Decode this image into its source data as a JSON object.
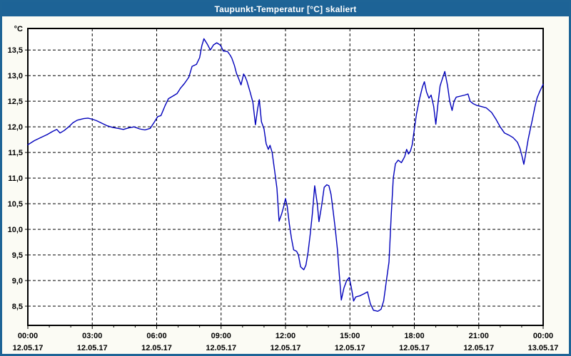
{
  "window": {
    "title": "Taupunkt-Temperatur [°C] skaliert",
    "title_bar_color": "#1d6396",
    "border_color": "#1e6496",
    "background_color": "#fbfbf4",
    "plot_background_color": "#ffffff"
  },
  "chart_data": {
    "type": "line",
    "title": "Taupunkt-Temperatur [°C] skaliert",
    "y_unit_label": "°C",
    "grid": "dashed",
    "legend": "none",
    "ylim": [
      8.125,
      13.92
    ],
    "xlim_hours": [
      0,
      24
    ],
    "x_minor_step_hours": 1,
    "y_ticks": [
      {
        "value": 13.5,
        "label": "13,5"
      },
      {
        "value": 13.0,
        "label": "13,0"
      },
      {
        "value": 12.5,
        "label": "12,5"
      },
      {
        "value": 12.0,
        "label": "12,0"
      },
      {
        "value": 11.5,
        "label": "11,5"
      },
      {
        "value": 11.0,
        "label": "11,0"
      },
      {
        "value": 10.5,
        "label": "10,5"
      },
      {
        "value": 10.0,
        "label": "10,0"
      },
      {
        "value": 9.5,
        "label": "9,5"
      },
      {
        "value": 9.0,
        "label": "9,0"
      },
      {
        "value": 8.5,
        "label": "8,5"
      }
    ],
    "x_ticks": [
      {
        "hour": 0,
        "time": "00:00",
        "date": "12.05.17"
      },
      {
        "hour": 3,
        "time": "03:00",
        "date": "12.05.17"
      },
      {
        "hour": 6,
        "time": "06:00",
        "date": "12.05.17"
      },
      {
        "hour": 9,
        "time": "09:00",
        "date": "12.05.17"
      },
      {
        "hour": 12,
        "time": "12:00",
        "date": "12.05.17"
      },
      {
        "hour": 15,
        "time": "15:00",
        "date": "12.05.17"
      },
      {
        "hour": 18,
        "time": "18:00",
        "date": "12.05.17"
      },
      {
        "hour": 21,
        "time": "21:00",
        "date": "12.05.17"
      },
      {
        "hour": 24,
        "time": "00:00",
        "date": "13.05.17"
      }
    ],
    "series": [
      {
        "name": "Taupunkt-Temperatur",
        "color": "#0000bb",
        "points": [
          [
            0,
            11.65
          ],
          [
            0.3,
            11.73
          ],
          [
            0.6,
            11.79
          ],
          [
            0.9,
            11.85
          ],
          [
            1.15,
            11.91
          ],
          [
            1.35,
            11.95
          ],
          [
            1.5,
            11.88
          ],
          [
            1.7,
            11.93
          ],
          [
            1.9,
            12.0
          ],
          [
            2.1,
            12.08
          ],
          [
            2.3,
            12.13
          ],
          [
            2.6,
            12.16
          ],
          [
            2.8,
            12.17
          ],
          [
            3.0,
            12.15
          ],
          [
            3.2,
            12.12
          ],
          [
            3.45,
            12.07
          ],
          [
            3.7,
            12.02
          ],
          [
            3.95,
            11.99
          ],
          [
            4.2,
            11.97
          ],
          [
            4.45,
            11.95
          ],
          [
            4.7,
            11.98
          ],
          [
            4.95,
            12.0
          ],
          [
            5.2,
            11.96
          ],
          [
            5.45,
            11.94
          ],
          [
            5.7,
            11.97
          ],
          [
            5.9,
            12.1
          ],
          [
            6.05,
            12.2
          ],
          [
            6.2,
            12.22
          ],
          [
            6.4,
            12.42
          ],
          [
            6.55,
            12.55
          ],
          [
            6.75,
            12.6
          ],
          [
            6.95,
            12.65
          ],
          [
            7.1,
            12.75
          ],
          [
            7.3,
            12.85
          ],
          [
            7.5,
            12.97
          ],
          [
            7.65,
            13.18
          ],
          [
            7.85,
            13.22
          ],
          [
            8.0,
            13.35
          ],
          [
            8.1,
            13.58
          ],
          [
            8.2,
            13.72
          ],
          [
            8.35,
            13.62
          ],
          [
            8.5,
            13.5
          ],
          [
            8.65,
            13.6
          ],
          [
            8.8,
            13.64
          ],
          [
            8.95,
            13.6
          ],
          [
            9.0,
            13.57
          ],
          [
            9.1,
            13.48
          ],
          [
            9.3,
            13.47
          ],
          [
            9.42,
            13.4
          ],
          [
            9.5,
            13.34
          ],
          [
            9.62,
            13.2
          ],
          [
            9.72,
            13.04
          ],
          [
            9.82,
            12.94
          ],
          [
            9.93,
            12.82
          ],
          [
            10.05,
            13.03
          ],
          [
            10.12,
            12.98
          ],
          [
            10.2,
            12.9
          ],
          [
            10.35,
            12.68
          ],
          [
            10.48,
            12.48
          ],
          [
            10.6,
            12.04
          ],
          [
            10.7,
            12.35
          ],
          [
            10.78,
            12.53
          ],
          [
            10.88,
            12.1
          ],
          [
            11.0,
            11.96
          ],
          [
            11.1,
            11.67
          ],
          [
            11.2,
            11.56
          ],
          [
            11.28,
            11.64
          ],
          [
            11.38,
            11.5
          ],
          [
            11.5,
            11.12
          ],
          [
            11.6,
            10.8
          ],
          [
            11.7,
            10.16
          ],
          [
            11.82,
            10.3
          ],
          [
            11.92,
            10.45
          ],
          [
            12.0,
            10.6
          ],
          [
            12.08,
            10.45
          ],
          [
            12.18,
            10.1
          ],
          [
            12.28,
            9.82
          ],
          [
            12.38,
            9.6
          ],
          [
            12.52,
            9.57
          ],
          [
            12.6,
            9.5
          ],
          [
            12.7,
            9.27
          ],
          [
            12.85,
            9.21
          ],
          [
            12.95,
            9.3
          ],
          [
            13.05,
            9.55
          ],
          [
            13.15,
            9.9
          ],
          [
            13.25,
            10.3
          ],
          [
            13.36,
            10.85
          ],
          [
            13.48,
            10.5
          ],
          [
            13.56,
            10.15
          ],
          [
            13.68,
            10.45
          ],
          [
            13.8,
            10.82
          ],
          [
            13.92,
            10.87
          ],
          [
            14.02,
            10.85
          ],
          [
            14.12,
            10.68
          ],
          [
            14.22,
            10.35
          ],
          [
            14.32,
            10.0
          ],
          [
            14.42,
            9.6
          ],
          [
            14.5,
            9.15
          ],
          [
            14.6,
            8.62
          ],
          [
            14.72,
            8.85
          ],
          [
            14.85,
            9.0
          ],
          [
            14.97,
            9.06
          ],
          [
            15.07,
            8.85
          ],
          [
            15.17,
            8.6
          ],
          [
            15.27,
            8.68
          ],
          [
            15.45,
            8.7
          ],
          [
            15.65,
            8.74
          ],
          [
            15.82,
            8.78
          ],
          [
            15.95,
            8.55
          ],
          [
            16.1,
            8.42
          ],
          [
            16.3,
            8.4
          ],
          [
            16.45,
            8.44
          ],
          [
            16.57,
            8.6
          ],
          [
            16.7,
            9.0
          ],
          [
            16.82,
            9.36
          ],
          [
            16.92,
            10.24
          ],
          [
            17.02,
            11.0
          ],
          [
            17.12,
            11.28
          ],
          [
            17.25,
            11.35
          ],
          [
            17.4,
            11.3
          ],
          [
            17.55,
            11.42
          ],
          [
            17.64,
            11.56
          ],
          [
            17.73,
            11.47
          ],
          [
            17.82,
            11.53
          ],
          [
            17.9,
            11.65
          ],
          [
            18.0,
            11.95
          ],
          [
            18.1,
            12.25
          ],
          [
            18.25,
            12.56
          ],
          [
            18.38,
            12.78
          ],
          [
            18.47,
            12.88
          ],
          [
            18.57,
            12.68
          ],
          [
            18.68,
            12.56
          ],
          [
            18.78,
            12.62
          ],
          [
            18.9,
            12.4
          ],
          [
            19.0,
            12.05
          ],
          [
            19.1,
            12.45
          ],
          [
            19.2,
            12.8
          ],
          [
            19.3,
            12.93
          ],
          [
            19.42,
            13.08
          ],
          [
            19.55,
            12.8
          ],
          [
            19.65,
            12.5
          ],
          [
            19.76,
            12.32
          ],
          [
            19.85,
            12.5
          ],
          [
            19.95,
            12.58
          ],
          [
            20.15,
            12.6
          ],
          [
            20.35,
            12.62
          ],
          [
            20.5,
            12.64
          ],
          [
            20.6,
            12.5
          ],
          [
            20.75,
            12.45
          ],
          [
            20.9,
            12.42
          ],
          [
            21.1,
            12.4
          ],
          [
            21.35,
            12.37
          ],
          [
            21.6,
            12.28
          ],
          [
            21.8,
            12.15
          ],
          [
            22.0,
            12.0
          ],
          [
            22.2,
            11.88
          ],
          [
            22.4,
            11.84
          ],
          [
            22.6,
            11.79
          ],
          [
            22.8,
            11.7
          ],
          [
            22.92,
            11.58
          ],
          [
            23.02,
            11.42
          ],
          [
            23.1,
            11.27
          ],
          [
            23.2,
            11.5
          ],
          [
            23.3,
            11.75
          ],
          [
            23.4,
            11.95
          ],
          [
            23.5,
            12.15
          ],
          [
            23.62,
            12.4
          ],
          [
            23.72,
            12.57
          ],
          [
            23.85,
            12.7
          ],
          [
            24.0,
            12.83
          ]
        ]
      }
    ]
  }
}
